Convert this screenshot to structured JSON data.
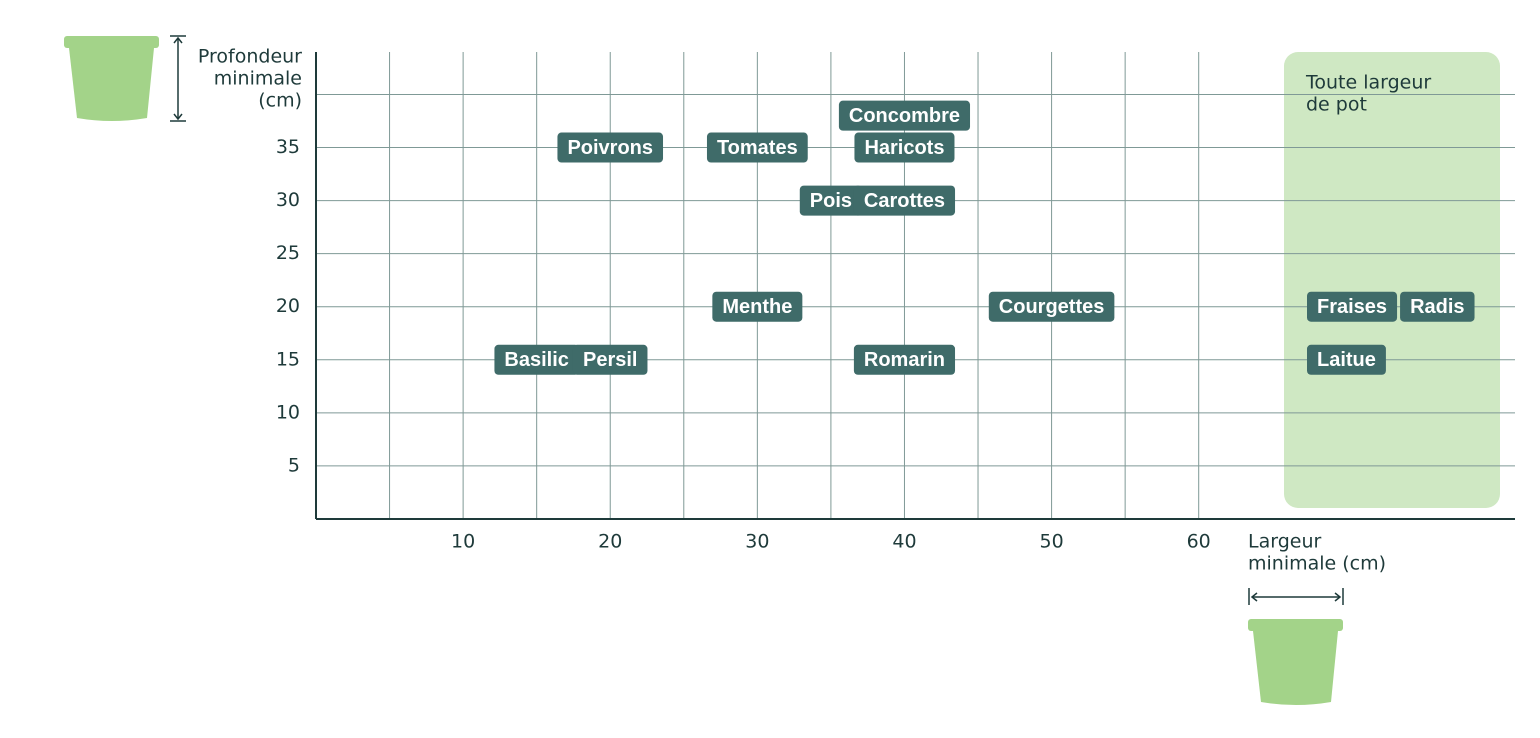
{
  "chart_data": {
    "type": "labeled-scatter",
    "y_label": [
      "Profondeur",
      "minimale",
      "(cm)"
    ],
    "x_label": [
      "Largeur",
      "minimale (cm)"
    ],
    "xlim": [
      0,
      81.5
    ],
    "ylim": [
      0,
      44
    ],
    "xticks": [
      10,
      20,
      30,
      40,
      50,
      60
    ],
    "yticks": [
      5,
      10,
      15,
      20,
      25,
      30,
      35
    ],
    "xgrid": [
      5,
      10,
      15,
      20,
      25,
      30,
      35,
      40,
      45,
      50,
      55,
      60
    ],
    "ygrid": [
      5,
      10,
      15,
      20,
      25,
      30,
      35,
      40
    ],
    "color": "#3f6b69",
    "points": [
      {
        "label": "Concombre",
        "x": 40,
        "y": 38
      },
      {
        "label": "Poivrons",
        "x": 20,
        "y": 35
      },
      {
        "label": "Tomates",
        "x": 30,
        "y": 35
      },
      {
        "label": "Haricots",
        "x": 40,
        "y": 35
      },
      {
        "label": "Pois",
        "x": 35,
        "y": 30
      },
      {
        "label": "Carottes",
        "x": 40,
        "y": 30
      },
      {
        "label": "Menthe",
        "x": 30,
        "y": 20
      },
      {
        "label": "Courgettes",
        "x": 50,
        "y": 20
      },
      {
        "label": "Basilic",
        "x": 15,
        "y": 15
      },
      {
        "label": "Persil",
        "x": 20,
        "y": 15
      },
      {
        "label": "Romarin",
        "x": 40,
        "y": 15
      }
    ],
    "any_width": {
      "label": [
        "Toute largeur",
        "de pot"
      ],
      "points": [
        {
          "label": "Fraises",
          "y": 20
        },
        {
          "label": "Radis",
          "y": 20
        },
        {
          "label": "Laitue",
          "y": 15
        }
      ]
    }
  }
}
